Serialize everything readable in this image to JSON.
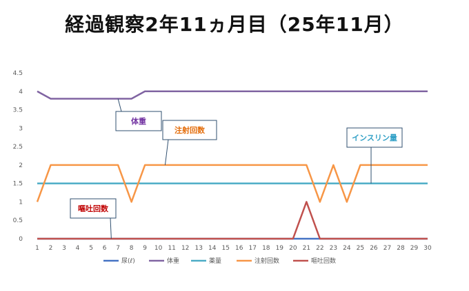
{
  "title": "経過観察2年11ヵ月目（25年11月）",
  "chart_data": {
    "type": "line",
    "title": "経過観察2年11ヵ月目（25年11月）",
    "x": [
      1,
      2,
      3,
      4,
      5,
      6,
      7,
      8,
      9,
      10,
      11,
      12,
      13,
      14,
      15,
      16,
      17,
      18,
      19,
      20,
      21,
      22,
      23,
      24,
      25,
      26,
      27,
      28,
      29,
      30
    ],
    "ylim": [
      0,
      4.5
    ],
    "yticks": [
      0,
      0.5,
      1,
      1.5,
      2,
      2.5,
      3,
      3.5,
      4,
      4.5
    ],
    "ytick_labels": [
      "0",
      "0.5",
      "1",
      "1.5",
      "2",
      "2.5",
      "3",
      "3.5",
      "4",
      "4.5"
    ],
    "grid": false,
    "legend_position": "bottom",
    "series": [
      {
        "name": "尿(ℓ)",
        "color": "#4472c4",
        "values": [
          0,
          0,
          0,
          0,
          0,
          0,
          0,
          0,
          0,
          0,
          0,
          0,
          0,
          0,
          0,
          0,
          0,
          0,
          0,
          0,
          0,
          0,
          0,
          0,
          0,
          0,
          0,
          0,
          0,
          0
        ]
      },
      {
        "name": "体重",
        "color": "#8064a2",
        "values": [
          4,
          3.8,
          3.8,
          3.8,
          3.8,
          3.8,
          3.8,
          3.8,
          4,
          4,
          4,
          4,
          4,
          4,
          4,
          4,
          4,
          4,
          4,
          4,
          4,
          4,
          4,
          4,
          4,
          4,
          4,
          4,
          4,
          4
        ]
      },
      {
        "name": "薬量",
        "color": "#4bacc6",
        "values": [
          1.5,
          1.5,
          1.5,
          1.5,
          1.5,
          1.5,
          1.5,
          1.5,
          1.5,
          1.5,
          1.5,
          1.5,
          1.5,
          1.5,
          1.5,
          1.5,
          1.5,
          1.5,
          1.5,
          1.5,
          1.5,
          1.5,
          1.5,
          1.5,
          1.5,
          1.5,
          1.5,
          1.5,
          1.5,
          1.5
        ]
      },
      {
        "name": "注射回数",
        "color": "#f79646",
        "values": [
          1,
          2,
          2,
          2,
          2,
          2,
          2,
          1,
          2,
          2,
          2,
          2,
          2,
          2,
          2,
          2,
          2,
          2,
          2,
          2,
          2,
          1,
          2,
          1,
          2,
          2,
          2,
          2,
          2,
          2
        ]
      },
      {
        "name": "嘔吐回数",
        "color": "#c0504d",
        "values": [
          0,
          0,
          0,
          0,
          0,
          0,
          0,
          0,
          0,
          0,
          0,
          0,
          0,
          0,
          0,
          0,
          0,
          0,
          0,
          0,
          1,
          0,
          0,
          0,
          0,
          0,
          0,
          0,
          0,
          0
        ]
      }
    ],
    "annotations": [
      {
        "text": "体重",
        "color": "#7030a0",
        "series": "体重",
        "x": 7,
        "y": 3.8
      },
      {
        "text": "注射回数",
        "color": "#e36c09",
        "series": "注射回数",
        "x": 10.5,
        "y": 2
      },
      {
        "text": "インスリン量",
        "color": "#31a0c6",
        "series": "薬量",
        "x": 25.8,
        "y": 1.5
      },
      {
        "text": "嘔吐回数",
        "color": "#c00000",
        "series": "嘔吐回数",
        "x": 6.5,
        "y": 0
      }
    ]
  }
}
